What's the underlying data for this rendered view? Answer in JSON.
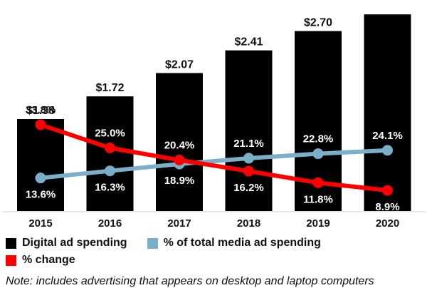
{
  "chart_data": {
    "type": "bar",
    "categories": [
      "2015",
      "2016",
      "2017",
      "2018",
      "2019",
      "2020"
    ],
    "series": [
      {
        "name": "Digital ad spending",
        "type": "bar",
        "values": [
          1.38,
          1.72,
          2.07,
          2.41,
          2.7,
          2.95
        ],
        "value_labels": [
          "$1.38",
          "$1.72",
          "$2.07",
          "$2.41",
          "$2.70",
          ""
        ],
        "color": "#000000"
      },
      {
        "name": "% of total media ad spending",
        "type": "line",
        "values": [
          13.6,
          16.3,
          18.9,
          21.1,
          22.8,
          24.1
        ],
        "value_labels": [
          "13.6%",
          "16.3%",
          "18.9%",
          "21.1%",
          "22.8%",
          "24.1%"
        ],
        "color": "#7aaec9"
      },
      {
        "name": "% change",
        "type": "line",
        "values": [
          33.8,
          25.0,
          20.4,
          16.2,
          11.8,
          8.9
        ],
        "value_labels": [
          "33.8%",
          "25.0%",
          "20.4%",
          "16.2%",
          "11.8%",
          "8.9%"
        ],
        "color": "#ff0000"
      }
    ],
    "title": "",
    "xlabel": "",
    "ylabel": "",
    "legend_placement": "bottom",
    "grid": false
  },
  "legend": {
    "items": [
      {
        "label": "Digital ad spending",
        "color": "#000000"
      },
      {
        "label": "% of total media ad spending",
        "color": "#7aaec9"
      },
      {
        "label": "% change",
        "color": "#ff0000"
      }
    ]
  },
  "note": "Note: includes advertising that appears on desktop and laptop computers"
}
